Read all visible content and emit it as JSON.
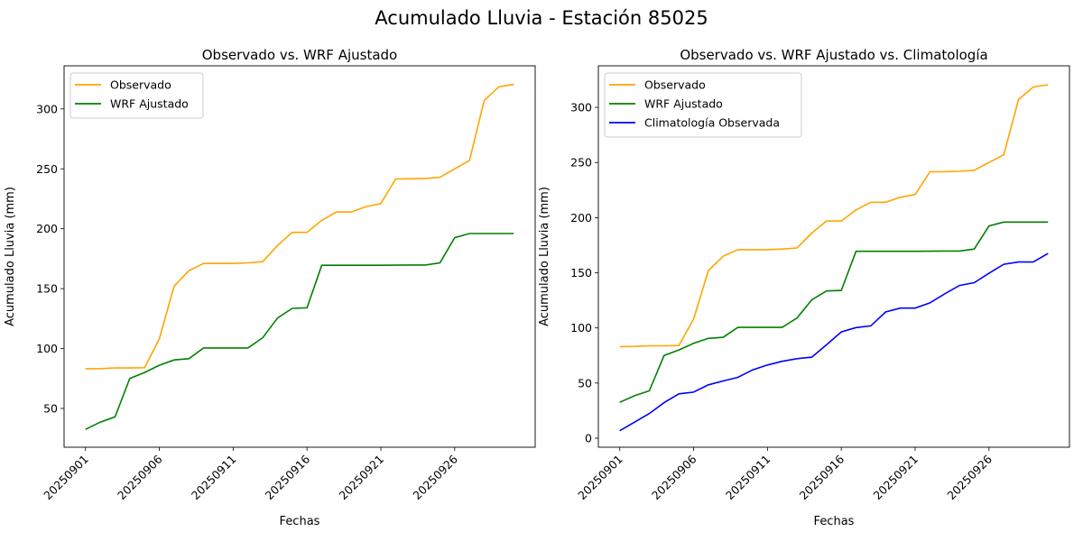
{
  "suptitle": "Acumulado Lluvia - Estación 85025",
  "chart_data": [
    {
      "type": "line",
      "title": "Observado vs. WRF Ajustado",
      "xlabel": "Fechas",
      "ylabel": "Acumulado Lluvia (mm)",
      "x_start": "20250901",
      "n_days": 30,
      "xticks": [
        "20250901",
        "20250906",
        "20250911",
        "20250916",
        "20250921",
        "20250926"
      ],
      "yticks": [
        50,
        100,
        150,
        200,
        250,
        300
      ],
      "ylim": [
        17.6,
        336
      ],
      "legend": "top-left",
      "series": [
        {
          "name": "Observado",
          "color": "#ffa500",
          "values": [
            83,
            83.2,
            83.8,
            83.8,
            84,
            108,
            152,
            165,
            171,
            171,
            171,
            171.5,
            172.5,
            186,
            197,
            197,
            207,
            214,
            214,
            218.5,
            221,
            241.5,
            241.7,
            242,
            243,
            250,
            257,
            307,
            318.5,
            320.5
          ]
        },
        {
          "name": "WRF Ajustado",
          "color": "#008000",
          "values": [
            32.5,
            38.5,
            43,
            75,
            80,
            86,
            90.5,
            91.5,
            100.5,
            100.5,
            100.5,
            100.5,
            109,
            125.5,
            133.5,
            134,
            169.5,
            169.5,
            169.5,
            169.5,
            169.5,
            169.6,
            169.7,
            169.7,
            171.5,
            192.5,
            196,
            196,
            196,
            196
          ]
        }
      ]
    },
    {
      "type": "line",
      "title": "Observado vs. WRF Ajustado vs. Climatología",
      "xlabel": "Fechas",
      "ylabel": "Acumulado Lluvia (mm)",
      "x_start": "20250901",
      "n_days": 30,
      "xticks": [
        "20250901",
        "20250906",
        "20250911",
        "20250916",
        "20250921",
        "20250926"
      ],
      "yticks": [
        0,
        50,
        100,
        150,
        200,
        250,
        300
      ],
      "ylim": [
        -8.2,
        337.7
      ],
      "legend": "top-left",
      "series": [
        {
          "name": "Observado",
          "color": "#ffa500",
          "values": [
            83,
            83.2,
            83.8,
            83.8,
            84,
            108,
            152,
            165,
            171,
            171,
            171,
            171.5,
            172.5,
            186,
            197,
            197,
            207,
            214,
            214,
            218.5,
            221,
            241.5,
            241.7,
            242,
            243,
            250,
            257,
            307,
            318.5,
            320.5
          ]
        },
        {
          "name": "WRF Ajustado",
          "color": "#008000",
          "values": [
            32.5,
            38.5,
            43,
            75,
            80,
            86,
            90.5,
            91.5,
            100.5,
            100.5,
            100.5,
            100.5,
            109,
            125.5,
            133.5,
            134,
            169.5,
            169.5,
            169.5,
            169.5,
            169.5,
            169.6,
            169.7,
            169.7,
            171.5,
            192.5,
            196,
            196,
            196,
            196
          ]
        },
        {
          "name": "Climatología Observada",
          "color": "#0000ff",
          "values": [
            6.8,
            14.5,
            22.4,
            32.2,
            40.2,
            41.8,
            48.4,
            51.9,
            55.2,
            62,
            66.4,
            69.7,
            72.1,
            73.5,
            84.7,
            96.4,
            100.3,
            101.9,
            114.5,
            118,
            118,
            122.7,
            130.9,
            138.5,
            141,
            149.5,
            157.7,
            159.8,
            159.8,
            167.5
          ]
        }
      ]
    }
  ]
}
